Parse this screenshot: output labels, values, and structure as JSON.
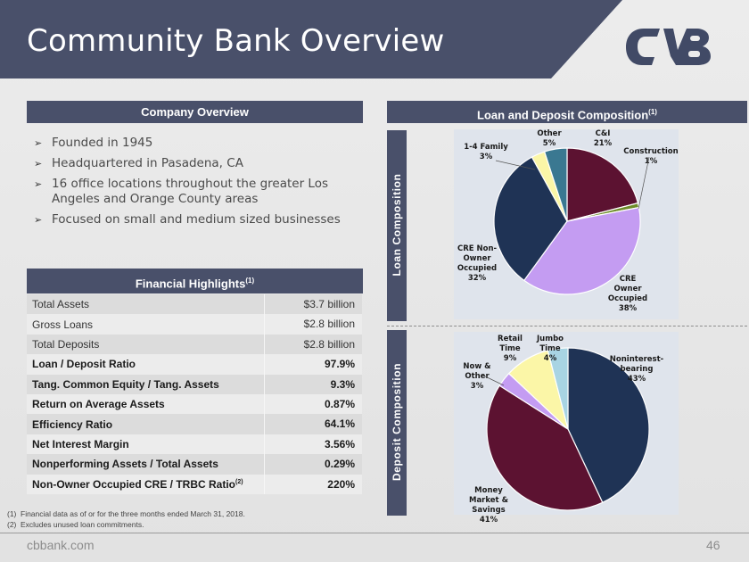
{
  "header": {
    "title": "Community Bank Overview"
  },
  "colors": {
    "navy": "#49506a",
    "logo": "#414a66"
  },
  "company_overview": {
    "heading": "Company Overview",
    "bullets": [
      "Founded in 1945",
      "Headquartered in Pasadena, CA",
      "16 office locations throughout the greater Los Angeles and Orange County areas",
      "Focused on small and medium sized businesses"
    ]
  },
  "financial_highlights": {
    "heading": "Financial Highlights",
    "heading_sup": "(1)",
    "rows": [
      {
        "label": "Total Assets",
        "value": "$3.7 billion",
        "bold": false
      },
      {
        "label": "Gross Loans",
        "value": "$2.8 billion",
        "bold": false
      },
      {
        "label": "Total Deposits",
        "value": "$2.8 billion",
        "bold": false
      },
      {
        "label": "Loan / Deposit Ratio",
        "value": "97.9%",
        "bold": true
      },
      {
        "label": "Tang. Common Equity / Tang. Assets",
        "value": "9.3%",
        "bold": true
      },
      {
        "label": "Return on Average Assets",
        "value": "0.87%",
        "bold": true
      },
      {
        "label": "Efficiency Ratio",
        "value": "64.1%",
        "bold": true
      },
      {
        "label": "Net Interest Margin",
        "value": "3.56%",
        "bold": true
      },
      {
        "label": "Nonperforming Assets / Total Assets",
        "value": "0.29%",
        "bold": true
      },
      {
        "label": "Non-Owner Occupied CRE / TRBC Ratio",
        "label_sup": "(2)",
        "value": "220%",
        "bold": true
      }
    ]
  },
  "composition": {
    "heading": "Loan and Deposit Composition",
    "heading_sup": "(1)"
  },
  "footnotes": [
    {
      "num": "(1)",
      "text": "Financial data as of or for the three months ended March 31, 2018."
    },
    {
      "num": "(2)",
      "text": "Excludes unused loan commitments."
    }
  ],
  "footer": {
    "site": "cbbank.com",
    "page": "46"
  },
  "chart_data": [
    {
      "type": "pie",
      "title": "Loan Composition",
      "slices": [
        {
          "label": "C&I",
          "value": 21,
          "pct": "21%",
          "color": "#5c1231"
        },
        {
          "label": "Construction",
          "value": 1,
          "pct": "1%",
          "color": "#6e8d2a"
        },
        {
          "label": "CRE Owner Occupied",
          "value": 38,
          "pct": "38%",
          "color": "#c49cf2"
        },
        {
          "label": "CRE Non-Owner Occupied",
          "value": 32,
          "pct": "32%",
          "color": "#1f3355"
        },
        {
          "label": "1-4 Family",
          "value": 3,
          "pct": "3%",
          "color": "#fbf6a7"
        },
        {
          "label": "Other",
          "value": 5,
          "pct": "5%",
          "color": "#3a7891"
        }
      ]
    },
    {
      "type": "pie",
      "title": "Deposit Composition",
      "slices": [
        {
          "label": "Noninterest-bearing",
          "value": 43,
          "pct": "43%",
          "color": "#1f3355"
        },
        {
          "label": "Money Market & Savings",
          "value": 41,
          "pct": "41%",
          "color": "#5c1231"
        },
        {
          "label": "Now & Other",
          "value": 3,
          "pct": "3%",
          "color": "#c49cf2"
        },
        {
          "label": "Retail Time",
          "value": 9,
          "pct": "9%",
          "color": "#fbf6a7"
        },
        {
          "label": "Jumbo Time",
          "value": 4,
          "pct": "4%",
          "color": "#a8d4e3"
        }
      ]
    }
  ]
}
